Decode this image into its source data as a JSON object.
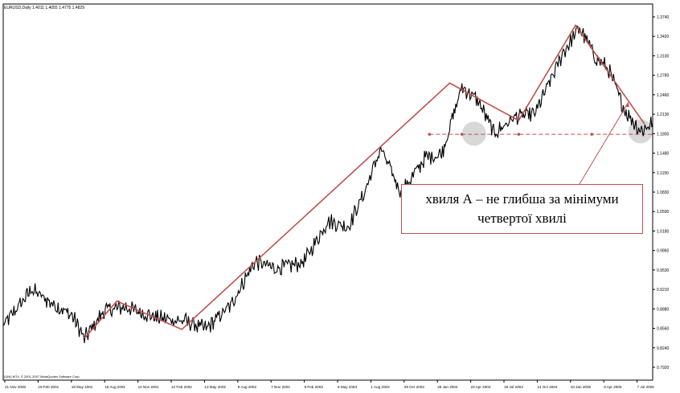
{
  "chart_data": {
    "type": "line",
    "header": "EURUSD,Daily  1.4011 1.4055 1.4775 1.4829",
    "footer": "(UNI) MT4, © 2001-2007 MetaQuotes Software Corp.",
    "x_ticks": [
      "21 Nov 2000",
      "19 Feb 2001",
      "18 May 2001",
      "16 Aug 2001",
      "14 Nov 2001",
      "12 Feb 2002",
      "13 May 2002",
      "9 Aug 2002",
      "7 Nov 2002",
      "5 Feb 2003",
      "6 May 2003",
      "1 Aug 2003",
      "29 Oct 2003",
      "26 Jan 2004",
      "23 Apr 2004",
      "19 Jul 2004",
      "14 Oct 2004",
      "10 Jan 2005",
      "8 Apr 2005",
      "7 Jul 2005"
    ],
    "y_ticks": [
      "1.3740",
      "1.3420",
      "1.3100",
      "1.2780",
      "1.2460",
      "1.2130",
      "1.1800",
      "1.1480",
      "1.1150",
      "1.0830",
      "1.0500",
      "1.0180",
      "0.9860",
      "0.9530",
      "0.9210",
      "0.8880",
      "0.8560",
      "0.8240",
      "0.7920"
    ],
    "ylim": [
      0.792,
      1.374
    ],
    "price_series": [
      {
        "i": 0,
        "v": 0.861
      },
      {
        "i": 7,
        "v": 0.921
      },
      {
        "i": 12,
        "v": 0.898
      },
      {
        "i": 17,
        "v": 0.878
      },
      {
        "i": 20,
        "v": 0.84
      },
      {
        "i": 25,
        "v": 0.887
      },
      {
        "i": 30,
        "v": 0.892
      },
      {
        "i": 38,
        "v": 0.874
      },
      {
        "i": 45,
        "v": 0.868
      },
      {
        "i": 50,
        "v": 0.856
      },
      {
        "i": 56,
        "v": 0.895
      },
      {
        "i": 62,
        "v": 0.968
      },
      {
        "i": 67,
        "v": 0.956
      },
      {
        "i": 74,
        "v": 0.966
      },
      {
        "i": 80,
        "v": 1.035
      },
      {
        "i": 85,
        "v": 1.025
      },
      {
        "i": 89,
        "v": 1.083
      },
      {
        "i": 93,
        "v": 1.155
      },
      {
        "i": 98,
        "v": 1.082
      },
      {
        "i": 104,
        "v": 1.14
      },
      {
        "i": 108,
        "v": 1.146
      },
      {
        "i": 113,
        "v": 1.258
      },
      {
        "i": 117,
        "v": 1.235
      },
      {
        "i": 121,
        "v": 1.18
      },
      {
        "i": 126,
        "v": 1.208
      },
      {
        "i": 131,
        "v": 1.213
      },
      {
        "i": 138,
        "v": 1.315
      },
      {
        "i": 142,
        "v": 1.356
      },
      {
        "i": 146,
        "v": 1.306
      },
      {
        "i": 149,
        "v": 1.289
      },
      {
        "i": 153,
        "v": 1.22
      },
      {
        "i": 157,
        "v": 1.184
      },
      {
        "i": 160,
        "v": 1.198
      }
    ],
    "wave_lines": [
      {
        "i": 20,
        "v": 0.84
      },
      {
        "i": 28,
        "v": 0.902
      },
      {
        "i": 44,
        "v": 0.855
      },
      {
        "i": 110,
        "v": 1.264
      },
      {
        "i": 127,
        "v": 1.202
      },
      {
        "i": 141,
        "v": 1.36
      },
      {
        "i": 158,
        "v": 1.196
      }
    ],
    "support_level": {
      "v": 1.179,
      "from_i": 105,
      "to_i": 160
    },
    "highlight_circles": [
      {
        "i": 116,
        "v": 1.18
      },
      {
        "i": 157,
        "v": 1.184
      }
    ],
    "arrow": {
      "from_i": 140,
      "from_v": 1.074,
      "to_i": 154,
      "to_v": 1.232
    },
    "colors": {
      "price": "#000000",
      "wave": "#c0504d",
      "circle": "#b8b8b8"
    }
  },
  "callout": {
    "line1": "хвиля А – не глибша за мінімуми",
    "line2": "четвертої хвилі"
  }
}
